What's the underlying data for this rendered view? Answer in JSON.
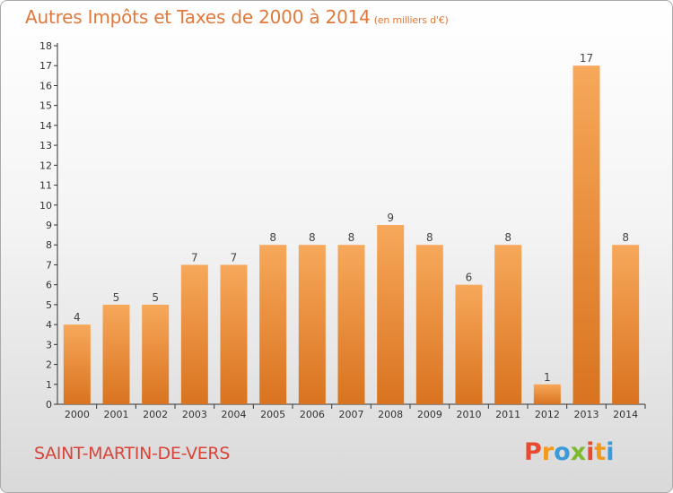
{
  "header": {
    "title": "Autres Impôts et Taxes de 2000 à 2014",
    "subtitle": "(en milliers d'€)"
  },
  "footer": {
    "commune": "SAINT-MARTIN-DE-VERS",
    "brand": "Proxiti"
  },
  "colors": {
    "title": "#e0793a",
    "commune": "#d8443a",
    "bar_top": "#f7a85a",
    "bar_bottom": "#d9731f",
    "logo": [
      "#e8492f",
      "#f29a1d",
      "#3b9bd8",
      "#7dbb2d",
      "#e8492f",
      "#f29a1d",
      "#3b9bd8"
    ]
  },
  "chart_data": {
    "type": "bar",
    "categories": [
      "2000",
      "2001",
      "2002",
      "2003",
      "2004",
      "2005",
      "2006",
      "2007",
      "2008",
      "2009",
      "2010",
      "2011",
      "2012",
      "2013",
      "2014"
    ],
    "values": [
      4,
      5,
      5,
      7,
      7,
      8,
      8,
      8,
      9,
      8,
      6,
      8,
      1,
      17,
      8
    ],
    "ylim": [
      0,
      18
    ],
    "yticks": [
      0,
      1,
      2,
      3,
      4,
      5,
      6,
      7,
      8,
      9,
      10,
      11,
      12,
      13,
      14,
      15,
      16,
      17,
      18
    ],
    "grid": false,
    "data_labels": true
  }
}
